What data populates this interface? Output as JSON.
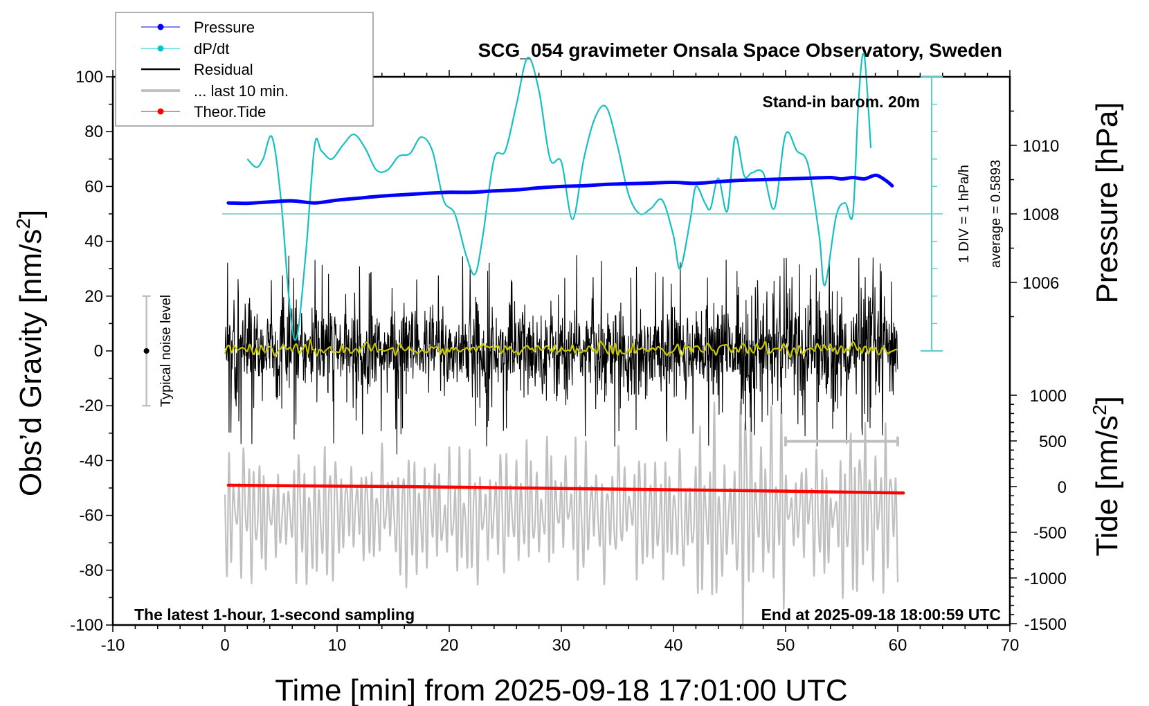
{
  "chart_data": {
    "type": "line",
    "title": "SCG_054 gravimeter Onsala Space Observatory, Sweden",
    "xlabel": "Time [min] from 2025-09-18 17:01:00 UTC",
    "ylabel": "Obs’d Gravity [nm/s²]",
    "ylabel_main": "Obs’d Gravity [nm/s",
    "ylabel_sup": "2",
    "ylabel_close": "]",
    "y2label": "Pressure [hPa]",
    "y3label_main": "Tide [nm/s",
    "y3label_sup": "2",
    "y3label_close": "]",
    "xlim": [
      -10,
      70
    ],
    "ylim": [
      -100,
      100
    ],
    "pressure_ylim_ticks": [
      1006,
      1008,
      1010
    ],
    "tide_ticks": [
      1000,
      500,
      0,
      -500,
      -1000,
      -1500
    ],
    "x_ticks": [
      -10,
      0,
      10,
      20,
      30,
      40,
      50,
      60,
      70
    ],
    "x_tick_labels": [
      "-10",
      "0",
      "10",
      "20",
      "30",
      "40",
      "50",
      "60",
      "70"
    ],
    "y_ticks": [
      100,
      80,
      60,
      40,
      20,
      0,
      -20,
      -40,
      -60,
      -80,
      -100
    ],
    "y_tick_labels": [
      "100",
      "80",
      "60",
      "40",
      "20",
      "0",
      "-20",
      "-40",
      "-60",
      "-80",
      "-100"
    ],
    "pressure_tick_labels": [
      "1010",
      "1008",
      "1006"
    ],
    "tide_tick_labels": [
      "1000",
      "500",
      "0",
      "-500",
      "-1000",
      "-1500"
    ],
    "legend": {
      "position": "top-left",
      "entries": [
        {
          "label": "Pressure",
          "color": "#0000ff",
          "marker": true
        },
        {
          "label": "dP/dt",
          "color": "#00c8c8",
          "marker": true
        },
        {
          "label": "Residual",
          "color": "#000000",
          "marker": false
        },
        {
          "label": "... last 10 min.",
          "color": "#c0c0c0",
          "marker": false
        },
        {
          "label": "Theor.Tide",
          "color": "#ff0000",
          "marker": true
        }
      ]
    },
    "annotations": {
      "barometer": "Stand-in barom. 20m",
      "div_scale": "1 DIV = 1 hPa/h",
      "average": "average = 0.5893",
      "sampling": "The latest 1-hour, 1-second sampling",
      "end_time": "End at 2025-09-18 18:00:59 UTC",
      "noise": "Typical noise level"
    },
    "noise_level_bar": {
      "x_min": -7,
      "y_low": -20,
      "y_high": 20
    },
    "last10_bracket": {
      "x_start": 50,
      "x_end": 60,
      "y": -33
    },
    "series": [
      {
        "name": "Pressure",
        "units": "hPa",
        "color": "#0000ff",
        "x": [
          0.3,
          2,
          4,
          6,
          8,
          10,
          12,
          14,
          16,
          18,
          20,
          22,
          24,
          26,
          28,
          30,
          32,
          34,
          36,
          38,
          40,
          42,
          44,
          46,
          48,
          50,
          52,
          54,
          55,
          56,
          57,
          57.7,
          58.2,
          59,
          59.5
        ],
        "values": [
          1008.32,
          1008.31,
          1008.35,
          1008.38,
          1008.32,
          1008.4,
          1008.46,
          1008.52,
          1008.56,
          1008.6,
          1008.63,
          1008.63,
          1008.67,
          1008.7,
          1008.76,
          1008.8,
          1008.82,
          1008.86,
          1008.88,
          1008.9,
          1008.92,
          1008.89,
          1008.94,
          1008.98,
          1009.0,
          1009.02,
          1009.04,
          1009.06,
          1009.02,
          1009.06,
          1009.02,
          1009.1,
          1009.12,
          1008.96,
          1008.82
        ]
      },
      {
        "name": "dP/dt",
        "units": "hPa/h (1 DIV = 1 hPa/h, baseline at average)",
        "color": "#00c8c8",
        "x": [
          2,
          2.8,
          3.4,
          4.2,
          5,
          5.8,
          6.4,
          7.2,
          8,
          8.6,
          9.5,
          10.5,
          11.5,
          12.5,
          13.5,
          14.5,
          15.5,
          16.5,
          17.5,
          18.5,
          19.5,
          20.5,
          21.5,
          22.3,
          23,
          24,
          25,
          26,
          27,
          28,
          29,
          30,
          31,
          32,
          33,
          34,
          35,
          36,
          37,
          38,
          39,
          40,
          40.6,
          41.5,
          42,
          42.8,
          43.3,
          44,
          44.8,
          45.5,
          46.3,
          47,
          48,
          49,
          50,
          51,
          52,
          53,
          53.5,
          54.5,
          55.3,
          56,
          56.5,
          57,
          57.6
        ],
        "values": [
          2.0,
          1.7,
          2.0,
          2.8,
          0.5,
          -3.5,
          -4.5,
          -1.5,
          2.5,
          2.3,
          2.0,
          2.5,
          2.9,
          2.4,
          1.6,
          1.6,
          2.1,
          2.2,
          2.8,
          2.3,
          0.5,
          0.0,
          -1.5,
          -2.2,
          -0.8,
          2.0,
          2.3,
          4.0,
          5.7,
          4.5,
          2.0,
          1.9,
          -0.2,
          2.0,
          3.5,
          3.9,
          2.5,
          0.7,
          0.0,
          0.2,
          0.5,
          -0.8,
          -2.0,
          -0.2,
          1.0,
          0.4,
          0.2,
          1.3,
          0.1,
          2.8,
          1.4,
          1.5,
          1.5,
          0.2,
          2.9,
          2.3,
          1.8,
          -0.8,
          -2.6,
          -0.1,
          0.4,
          0.0,
          4.1,
          5.8,
          2.4
        ]
      },
      {
        "name": "Residual",
        "units": "nm/s²",
        "color": "#000000",
        "x_range": [
          0,
          60
        ],
        "mean": 0,
        "typical_amplitude": 12,
        "peak_range": [
          -40,
          38
        ],
        "smoothed_color": "#c8c800"
      },
      {
        "name": "... last 10 min.",
        "units": "nm/s² (time-compressed, offset)",
        "color": "#c0c0c0",
        "x_range": [
          0,
          60
        ],
        "offset": -59,
        "typical_amplitude": 18,
        "peak_range": [
          -104,
          -28
        ]
      },
      {
        "name": "Theor.Tide",
        "units": "nm/s²",
        "color": "#ff0000",
        "x": [
          0.3,
          10,
          20,
          30,
          40,
          50,
          60.5
        ],
        "values": [
          15,
          5,
          -5,
          -20,
          -35,
          -50,
          -70
        ]
      }
    ],
    "grid": false
  }
}
